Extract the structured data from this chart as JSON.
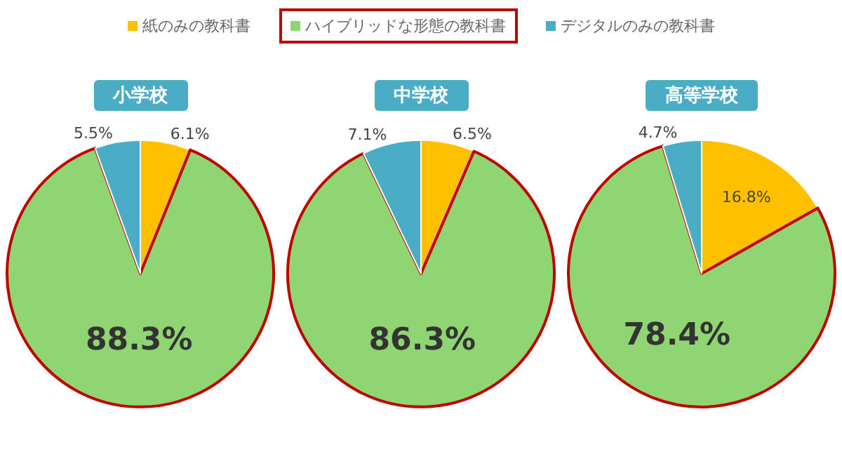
{
  "chart_data": [
    {
      "type": "pie",
      "title": "小学校",
      "categories": [
        "紙のみの教科書",
        "ハイブリッドな形態の教科書",
        "デジタルのみの教科書"
      ],
      "values": [
        6.1,
        88.3,
        5.5
      ],
      "colors": [
        "#ffc000",
        "#8fd672",
        "#4bacc6"
      ],
      "value_labels": [
        "6.1%",
        "88.3%",
        "5.5%"
      ],
      "legend": "top"
    },
    {
      "type": "pie",
      "title": "中学校",
      "categories": [
        null,
        null,
        null
      ],
      "values": [
        6.5,
        86.3,
        7.1
      ],
      "colors": [
        "#ffc000",
        "#8fd672",
        "#4bacc6"
      ],
      "value_labels": [
        "6.5%",
        "86.3%",
        "7.1%"
      ]
    },
    {
      "type": "pie",
      "title": "高等学校",
      "categories": [
        null,
        null,
        null
      ],
      "values": [
        16.8,
        78.4,
        4.7
      ],
      "colors": [
        "#ffc000",
        "#8fd672",
        "#4bacc6"
      ],
      "value_labels": [
        "16.8%",
        "78.4%",
        "4.7%"
      ]
    }
  ]
}
